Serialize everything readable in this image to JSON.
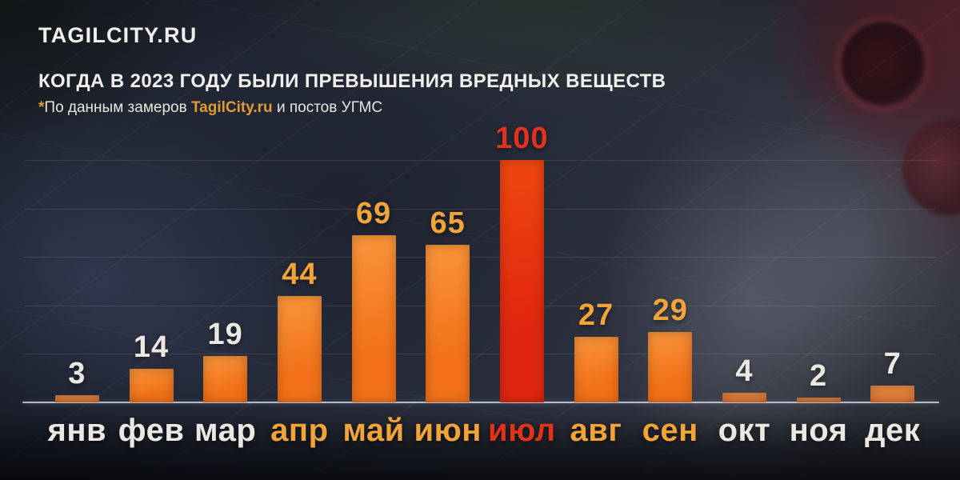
{
  "brand": {
    "logo_text": "TAGILCITY.RU"
  },
  "header": {
    "title": "КОГДА В 2023 ГОДУ БЫЛИ ПРЕВЫШЕНИЯ ВРЕДНЫХ ВЕЩЕСТВ",
    "footnote": {
      "marker": "*",
      "text_before": "По данным замеров ",
      "brand": "TagilCity.ru",
      "text_after": " и постов УГМС"
    }
  },
  "colors": {
    "text_white": "#ECE9E3",
    "accent_orange": "#F2A33A",
    "accent_red": "#E0321C",
    "bar_orange_top": "#F9953B",
    "bar_orange_bottom": "#F2711A",
    "bar_muted_top": "#E68A44",
    "bar_muted_bottom": "#DF7431",
    "bar_red_top": "#F0470F",
    "bar_red_bottom": "#E0260F",
    "axis_line": "#CBD6E5"
  },
  "chart_data": {
    "type": "bar",
    "title": "КОГДА В 2023 ГОДУ БЫЛИ ПРЕВЫШЕНИЯ ВРЕДНЫХ ВЕЩЕСТВ",
    "subtitle": "*По данным замеров TagilCity.ru и постов УГМС",
    "categories": [
      "янв",
      "фев",
      "мар",
      "апр",
      "май",
      "июн",
      "июл",
      "авг",
      "сен",
      "окт",
      "ноя",
      "дек"
    ],
    "values": [
      3,
      14,
      19,
      44,
      69,
      65,
      100,
      27,
      29,
      4,
      2,
      7
    ],
    "ylim": [
      0,
      100
    ],
    "grid": {
      "horizontal": true,
      "step": 20,
      "style": "faint white lines"
    },
    "legend": "none",
    "bars": [
      {
        "label": "янв",
        "value": 3,
        "tone": "muted",
        "text": "white"
      },
      {
        "label": "фев",
        "value": 14,
        "tone": "orange",
        "text": "white"
      },
      {
        "label": "мар",
        "value": 19,
        "tone": "orange",
        "text": "white"
      },
      {
        "label": "апр",
        "value": 44,
        "tone": "orange",
        "text": "orange"
      },
      {
        "label": "май",
        "value": 69,
        "tone": "orange",
        "text": "orange"
      },
      {
        "label": "июн",
        "value": 65,
        "tone": "orange",
        "text": "orange"
      },
      {
        "label": "июл",
        "value": 100,
        "tone": "red",
        "text": "red"
      },
      {
        "label": "авг",
        "value": 27,
        "tone": "orange",
        "text": "orange"
      },
      {
        "label": "сен",
        "value": 29,
        "tone": "orange",
        "text": "orange"
      },
      {
        "label": "окт",
        "value": 4,
        "tone": "muted",
        "text": "white"
      },
      {
        "label": "ноя",
        "value": 2,
        "tone": "muted",
        "text": "white"
      },
      {
        "label": "дек",
        "value": 7,
        "tone": "muted",
        "text": "white"
      }
    ]
  }
}
